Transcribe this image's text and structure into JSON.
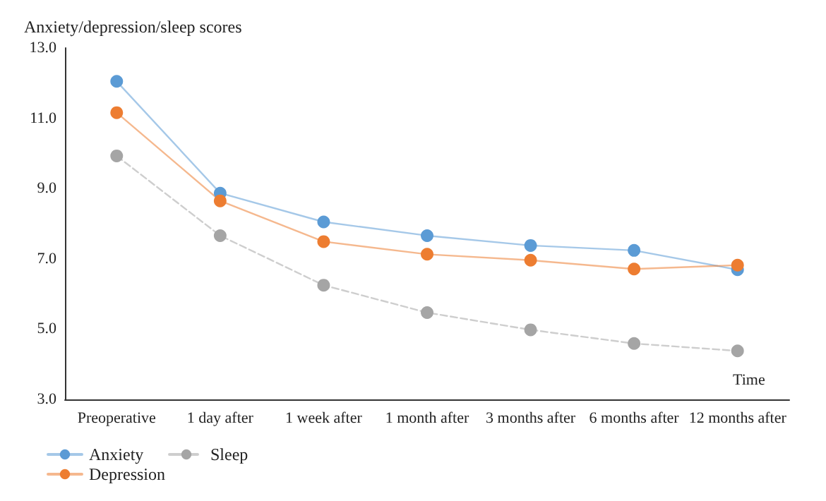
{
  "chart_data": {
    "type": "line",
    "ylabel": "Anxiety/depression/sleep scores",
    "xlabel": "Time",
    "categories": [
      "Preoperative",
      "1 day after",
      "1 week after",
      "1 month after",
      "3 months after",
      "6 months after",
      "12 months after"
    ],
    "series": [
      {
        "name": "Anxiety",
        "color": "#5b9bd5",
        "values": [
          12.05,
          8.87,
          8.05,
          7.66,
          7.38,
          7.24,
          6.69
        ]
      },
      {
        "name": "Depression",
        "color": "#ed7d31",
        "values": [
          11.16,
          8.65,
          7.49,
          7.13,
          6.96,
          6.71,
          6.82
        ]
      },
      {
        "name": "Sleep",
        "color": "#a5a5a5",
        "line_style": "dashed",
        "values": [
          9.93,
          7.66,
          6.25,
          5.47,
          4.98,
          4.59,
          4.38
        ]
      }
    ],
    "ylim": [
      3,
      13
    ],
    "yticks": [
      {
        "value": 3,
        "label": "3.0"
      },
      {
        "value": 5,
        "label": "5.0"
      },
      {
        "value": 7,
        "label": "7.0"
      },
      {
        "value": 9,
        "label": "9.0"
      },
      {
        "value": 11,
        "label": "11.0"
      },
      {
        "value": 13,
        "label": "13.0"
      }
    ],
    "grid": false,
    "legend": "bottom left",
    "marker": "circle",
    "line_style": "solid"
  }
}
